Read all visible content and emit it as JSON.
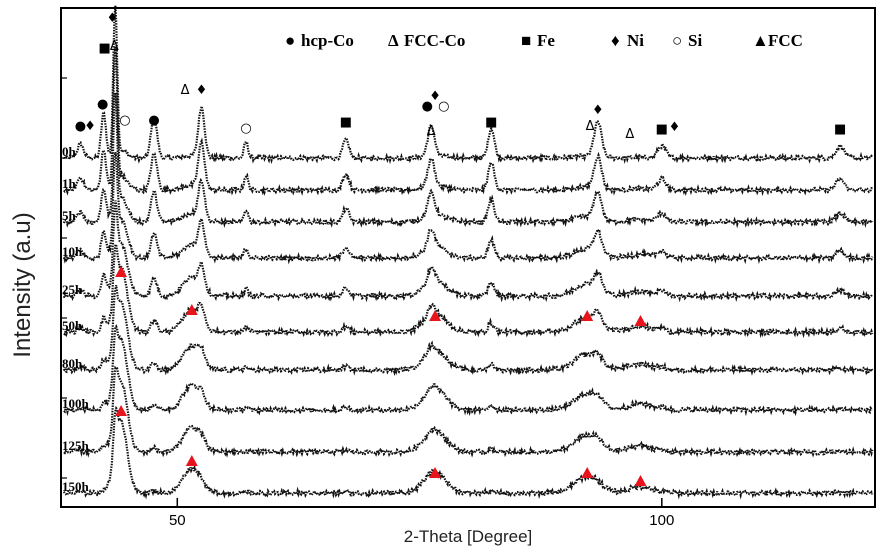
{
  "chart_data": {
    "type": "line",
    "xlabel": "2-Theta [Degree]",
    "ylabel": "Intensity (a.u)",
    "xlim": [
      38,
      122
    ],
    "x_ticks": [
      50,
      100
    ],
    "series": [
      {
        "name": "0h",
        "hcp": 0.95,
        "fcc": 0.1,
        "sharp": 1.0,
        "crystal": 1.0
      },
      {
        "name": "1h",
        "hcp": 0.8,
        "fcc": 0.2,
        "sharp": 0.9,
        "crystal": 0.9
      },
      {
        "name": "5h",
        "hcp": 0.65,
        "fcc": 0.35,
        "sharp": 0.75,
        "crystal": 0.75
      },
      {
        "name": "10h",
        "hcp": 0.45,
        "fcc": 0.55,
        "sharp": 0.55,
        "crystal": 0.6
      },
      {
        "name": "25h",
        "hcp": 0.25,
        "fcc": 0.75,
        "sharp": 0.4,
        "crystal": 0.45
      },
      {
        "name": "50h",
        "hcp": 0.1,
        "fcc": 0.9,
        "sharp": 0.3,
        "crystal": 0.3
      },
      {
        "name": "80h",
        "hcp": 0.05,
        "fcc": 0.95,
        "sharp": 0.25,
        "crystal": 0.2
      },
      {
        "name": "100h",
        "hcp": 0.0,
        "fcc": 1.0,
        "sharp": 0.25,
        "crystal": 0.15
      },
      {
        "name": "125h",
        "hcp": 0.0,
        "fcc": 1.0,
        "sharp": 0.25,
        "crystal": 0.1
      },
      {
        "name": "150h",
        "hcp": 0.0,
        "fcc": 1.0,
        "sharp": 0.25,
        "crystal": 0.05
      }
    ],
    "legend": [
      {
        "symbol": "●",
        "label": "hcp-Co",
        "color": "#000000"
      },
      {
        "symbol": "Δ",
        "label": "FCC-Co",
        "color": "#000000"
      },
      {
        "symbol": "■",
        "label": "Fe",
        "color": "#000000"
      },
      {
        "symbol": "♦",
        "label": "Ni",
        "color": "#000000"
      },
      {
        "symbol": "○",
        "label": "Si",
        "color": "#000000"
      },
      {
        "symbol": "▲",
        "label": "FCC",
        "color": "#e8141c"
      }
    ],
    "peaks_0h": [
      {
        "x": 40.0,
        "marker": "●"
      },
      {
        "x": 41.0,
        "marker": "♦"
      },
      {
        "x": 42.3,
        "marker": "●"
      },
      {
        "x": 42.5,
        "marker": "■"
      },
      {
        "x": 43.3,
        "marker": "♦"
      },
      {
        "x": 43.5,
        "marker": "Δ"
      },
      {
        "x": 44.6,
        "marker": "○"
      },
      {
        "x": 47.6,
        "marker": "●"
      },
      {
        "x": 50.8,
        "marker": "Δ"
      },
      {
        "x": 52.5,
        "marker": "♦"
      },
      {
        "x": 57.1,
        "marker": "○"
      },
      {
        "x": 67.4,
        "marker": "■"
      },
      {
        "x": 75.8,
        "marker": "●"
      },
      {
        "x": 76.2,
        "marker": "Δ"
      },
      {
        "x": 76.6,
        "marker": "♦"
      },
      {
        "x": 77.5,
        "marker": "○"
      },
      {
        "x": 82.4,
        "marker": "■"
      },
      {
        "x": 92.6,
        "marker": "Δ"
      },
      {
        "x": 93.4,
        "marker": "♦"
      },
      {
        "x": 96.7,
        "marker": "Δ"
      },
      {
        "x": 100.0,
        "marker": "■"
      },
      {
        "x": 101.3,
        "marker": "♦"
      },
      {
        "x": 118.4,
        "marker": "■"
      }
    ],
    "fcc_markers": [
      {
        "row": "25h",
        "x": 44.2
      },
      {
        "row": "50h",
        "x": 51.5
      },
      {
        "row": "50h",
        "x": 76.6
      },
      {
        "row": "50h",
        "x": 92.3
      },
      {
        "row": "50h",
        "x": 97.8
      },
      {
        "row": "100h",
        "x": 44.2
      },
      {
        "row": "150h",
        "x": 51.5
      },
      {
        "row": "150h",
        "x": 76.6
      },
      {
        "row": "150h",
        "x": 92.3
      },
      {
        "row": "150h",
        "x": 97.8
      }
    ],
    "grid": false
  }
}
